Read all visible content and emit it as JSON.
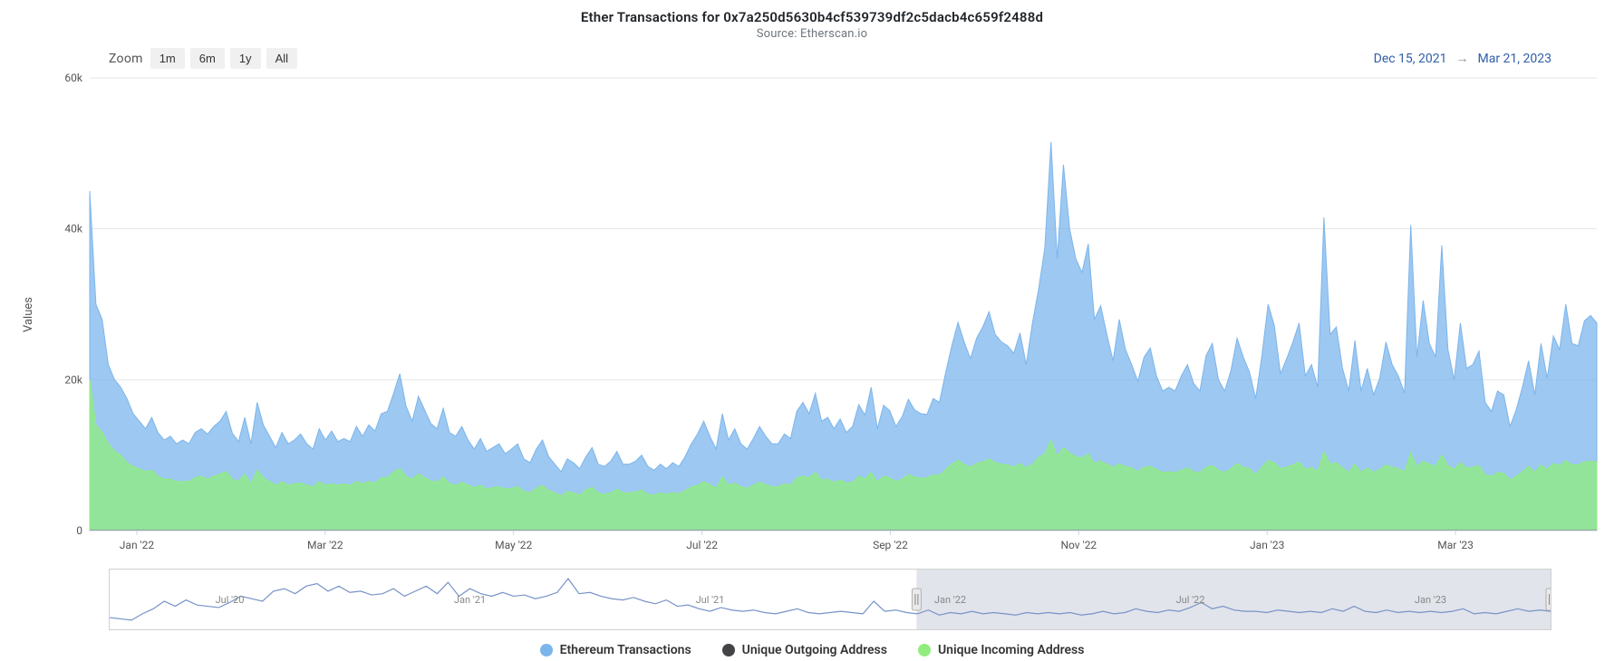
{
  "title": "Ether Transactions for 0x7a250d5630b4cf539739df2c5dacb4c659f2488d",
  "subtitle": "Source: Etherscan.io",
  "zoom": {
    "label": "Zoom",
    "buttons": [
      "1m",
      "6m",
      "1y",
      "All"
    ]
  },
  "date_range": {
    "from": "Dec 15, 2021",
    "arrow": "→",
    "to": "Mar 21, 2023"
  },
  "y_axis_label": "Values",
  "legend": [
    {
      "label": "Ethereum Transactions",
      "color": "#7cb5ec"
    },
    {
      "label": "Unique Outgoing Address",
      "color": "#434348"
    },
    {
      "label": "Unique Incoming Address",
      "color": "#90ed7d"
    }
  ],
  "chart": {
    "type": "area",
    "background_color": "#ffffff",
    "grid_color": "#e6e6e6",
    "ylim": [
      0,
      60000
    ],
    "yticks": [
      0,
      20000,
      40000,
      60000
    ],
    "ytick_labels": [
      "0",
      "20k",
      "40k",
      "60k"
    ],
    "xtick_labels": [
      "Jan '22",
      "Mar '22",
      "May '22",
      "Jul '22",
      "Sep '22",
      "Nov '22",
      "Jan '23",
      "Mar '23"
    ],
    "series_colors": {
      "transactions": "#7cb5ec",
      "outgoing": "#434348",
      "incoming": "#90ed7d"
    },
    "fill_opacity": 0.75,
    "line_width": 1,
    "transactions": [
      45000,
      30000,
      28000,
      22000,
      20000,
      19000,
      17500,
      15500,
      14500,
      13500,
      15000,
      13000,
      12000,
      12500,
      11500,
      12000,
      11500,
      13000,
      13500,
      12800,
      13800,
      14500,
      15800,
      12900,
      11800,
      15000,
      11500,
      17000,
      14000,
      12500,
      11000,
      13000,
      11500,
      12000,
      12800,
      11500,
      10800,
      13500,
      12000,
      13200,
      11800,
      12200,
      11800,
      13800,
      12500,
      14000,
      13200,
      15500,
      15800,
      18200,
      20800,
      16500,
      14500,
      17800,
      16000,
      14200,
      13500,
      16200,
      13000,
      12500,
      13800,
      12000,
      10800,
      12200,
      10500,
      11000,
      11500,
      10200,
      10800,
      11500,
      9500,
      9000,
      10800,
      12000,
      9800,
      8800,
      7800,
      9500,
      9000,
      8200,
      9800,
      11000,
      8800,
      8500,
      9200,
      10500,
      8800,
      8800,
      9200,
      10000,
      8500,
      8000,
      8800,
      8200,
      9000,
      8500,
      9800,
      11500,
      12800,
      14500,
      12500,
      10800,
      15500,
      12000,
      13500,
      11500,
      10800,
      12200,
      13800,
      12500,
      11500,
      11500,
      12800,
      12200,
      15800,
      17000,
      15500,
      18200,
      14500,
      15000,
      13500,
      14800,
      13000,
      13800,
      16700,
      15300,
      19000,
      13500,
      16600,
      15900,
      13800,
      15100,
      17400,
      16000,
      15500,
      15400,
      17500,
      17000,
      20900,
      24500,
      27600,
      25000,
      22800,
      25500,
      27000,
      29000,
      26000,
      25000,
      24500,
      23500,
      26200,
      22000,
      27500,
      32000,
      37500,
      51500,
      36000,
      48500,
      40000,
      36000,
      34200,
      38000,
      28000,
      29800,
      26000,
      22500,
      28000,
      24000,
      22000,
      19800,
      23000,
      24200,
      20500,
      18500,
      19000,
      18500,
      20500,
      22000,
      19500,
      18500,
      23200,
      24800,
      20000,
      18500,
      21200,
      25500,
      23000,
      21000,
      17500,
      23200,
      30000,
      27200,
      20800,
      22800,
      25000,
      27500,
      20500,
      22000,
      19000,
      41500,
      26000,
      27000,
      21500,
      18500,
      25200,
      18500,
      21500,
      18000,
      20200,
      25000,
      22000,
      20500,
      18200,
      40500,
      23000,
      30500,
      24800,
      23000,
      37800,
      24000,
      20000,
      27500,
      21500,
      22000,
      23800,
      17000,
      15800,
      18500,
      18000,
      13800,
      16000,
      19000,
      22500,
      18000,
      24800,
      20200,
      25800,
      24000,
      30000,
      24800,
      24500,
      27800,
      28500,
      27500
    ],
    "incoming": [
      20000,
      14000,
      13000,
      11500,
      10500,
      10000,
      9000,
      8500,
      8200,
      7800,
      8000,
      7200,
      6800,
      6800,
      6500,
      6500,
      6500,
      7000,
      7200,
      6800,
      7200,
      7500,
      7800,
      6800,
      6500,
      7500,
      6200,
      8000,
      7000,
      6500,
      6000,
      6500,
      6000,
      6200,
      6300,
      6000,
      5800,
      6500,
      6000,
      6200,
      6000,
      6200,
      6000,
      6500,
      6200,
      6500,
      6300,
      7000,
      7000,
      7800,
      8200,
      7200,
      6800,
      7500,
      7000,
      6600,
      6400,
      7100,
      6200,
      6000,
      6400,
      6000,
      5700,
      6000,
      5500,
      5700,
      5800,
      5500,
      5600,
      5800,
      5200,
      5000,
      5600,
      6000,
      5300,
      5000,
      4600,
      5200,
      5000,
      4700,
      5400,
      5700,
      5000,
      4800,
      5000,
      5500,
      5000,
      5000,
      5100,
      5400,
      4800,
      4700,
      5000,
      4800,
      5000,
      4900,
      5300,
      5800,
      6000,
      6500,
      6100,
      5600,
      7100,
      6000,
      6300,
      5800,
      5600,
      6000,
      6400,
      6100,
      5800,
      5800,
      6200,
      6000,
      7000,
      7200,
      7000,
      7700,
      6700,
      6800,
      6400,
      6700,
      6300,
      6400,
      7200,
      6800,
      7700,
      6400,
      7200,
      7000,
      6500,
      6800,
      7400,
      7100,
      6900,
      7000,
      7400,
      7300,
      8100,
      8800,
      9300,
      8800,
      8400,
      8900,
      9100,
      9500,
      9000,
      8800,
      8700,
      8400,
      8900,
      8300,
      8800,
      9700,
      10200,
      12000,
      9800,
      11000,
      10300,
      9800,
      9600,
      10200,
      8900,
      9200,
      8800,
      8400,
      8800,
      8500,
      8300,
      7800,
      8400,
      8500,
      8100,
      7700,
      7800,
      7700,
      8000,
      8300,
      7800,
      7700,
      8400,
      8600,
      8000,
      7700,
      8200,
      8900,
      8400,
      8200,
      7400,
      8400,
      9300,
      9000,
      8200,
      8400,
      8700,
      9100,
      8100,
      8400,
      7800,
      10500,
      8800,
      9000,
      8300,
      7700,
      8800,
      7700,
      8300,
      7700,
      8100,
      8700,
      8400,
      8200,
      7800,
      10300,
      8400,
      9200,
      8800,
      8500,
      10000,
      8600,
      8100,
      9000,
      8300,
      8400,
      8600,
      7400,
      7200,
      7700,
      7600,
      6700,
      7200,
      7800,
      8500,
      7700,
      8700,
      8100,
      8900,
      8600,
      9300,
      8700,
      8700,
      9100,
      9200,
      9100
    ],
    "outgoing_constant": 80
  },
  "navigator": {
    "xtick_labels": [
      "Jul '20",
      "Jan '21",
      "Jul '21",
      "Jan '22",
      "Jul '22",
      "Jan '23"
    ],
    "selection_fraction_start": 0.56,
    "selection_fraction_end": 1.0,
    "line_color": "#7893c8",
    "line": [
      5,
      4,
      3,
      8,
      12,
      18,
      14,
      19,
      15,
      14,
      13,
      17,
      22,
      20,
      18,
      26,
      28,
      24,
      30,
      32,
      26,
      30,
      25,
      26,
      23,
      24,
      28,
      22,
      26,
      30,
      24,
      33,
      22,
      28,
      24,
      22,
      25,
      22,
      23,
      20,
      22,
      25,
      36,
      24,
      25,
      22,
      20,
      19,
      21,
      18,
      16,
      19,
      14,
      15,
      12,
      10,
      13,
      11,
      10,
      11,
      9,
      8,
      10,
      12,
      9,
      8,
      9,
      10,
      9,
      8,
      18,
      10,
      11,
      9,
      8,
      11,
      7,
      9,
      8,
      10,
      8,
      9,
      8,
      7,
      9,
      8,
      9,
      8,
      9,
      7,
      8,
      10,
      8,
      9,
      12,
      10,
      9,
      11,
      10,
      13,
      17,
      12,
      14,
      11,
      10,
      10,
      9,
      11,
      10,
      9,
      10,
      9,
      12,
      10,
      14,
      10,
      9,
      11,
      9,
      10,
      9,
      10,
      9,
      10,
      12,
      8,
      9,
      8,
      10,
      12,
      10,
      11,
      10
    ]
  }
}
